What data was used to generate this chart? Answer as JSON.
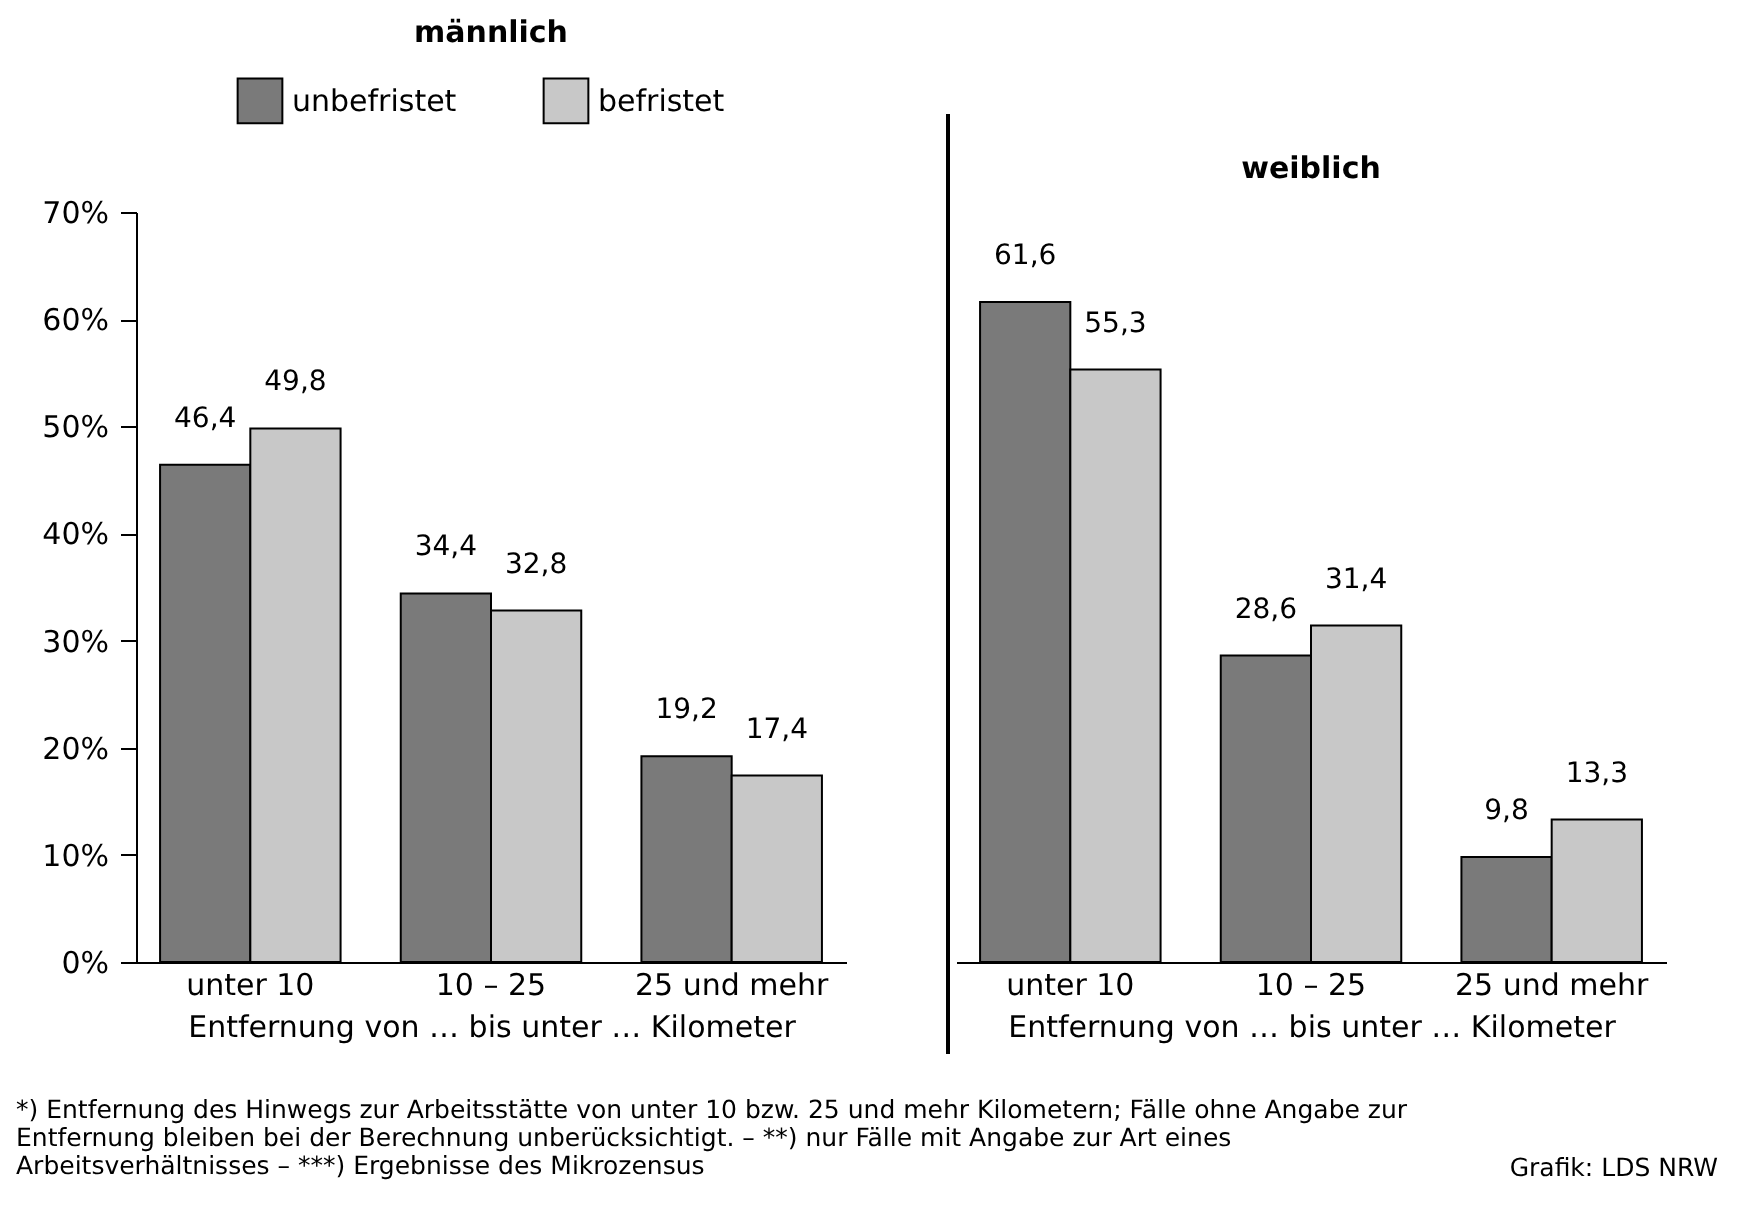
{
  "chart_data": [
    {
      "type": "bar",
      "title": "männlich",
      "xlabel": "Entfernung von … bis unter … Kilometer",
      "categories": [
        "unter 10",
        "10 – 25",
        "25 und mehr"
      ],
      "series": [
        {
          "name": "unbefristet",
          "color": "#7a7a7a",
          "values": [
            46.4,
            34.4,
            19.2
          ],
          "value_labels": [
            "46,4",
            "34,4",
            "19,2"
          ]
        },
        {
          "name": "befristet",
          "color": "#c8c8c8",
          "values": [
            49.8,
            32.8,
            17.4
          ],
          "value_labels": [
            "49,8",
            "32,8",
            "17,4"
          ]
        }
      ],
      "ylim": [
        0,
        70
      ],
      "yticks": [
        {
          "value": 0,
          "label": "0%"
        },
        {
          "value": 10,
          "label": "10%"
        },
        {
          "value": 20,
          "label": "20%"
        },
        {
          "value": 30,
          "label": "30%"
        },
        {
          "value": 40,
          "label": "40%"
        },
        {
          "value": 50,
          "label": "50%"
        },
        {
          "value": 60,
          "label": "60%"
        },
        {
          "value": 70,
          "label": "70%"
        }
      ],
      "grid": false,
      "legend": "top",
      "annotations": [
        "*) Entfernung des Hinwegs zur Arbeitsstätte von unter 10 bzw. 25 und mehr Kilometern; Fälle ohne Angabe zur Entfernung bleiben bei der Berechnung unberücksichtigt. – **) nur Fälle mit Angabe zur Art eines Arbeitsverhältnisses – ***) Ergebnisse des Mikrozensus",
        "Grafik: LDS NRW"
      ]
    },
    {
      "type": "bar",
      "title": "weiblich",
      "xlabel": "Entfernung von … bis unter … Kilometer",
      "categories": [
        "unter 10",
        "10 – 25",
        "25 und mehr"
      ],
      "series": [
        {
          "color": "#7a7a7a",
          "values": [
            61.6,
            28.6,
            9.8
          ],
          "value_labels": [
            "61,6",
            "28,6",
            "9,8"
          ]
        },
        {
          "color": "#c8c8c8",
          "values": [
            55.3,
            31.4,
            13.3
          ],
          "value_labels": [
            "55,3",
            "31,4",
            "13,3"
          ]
        }
      ],
      "ylim": [
        0,
        70
      ],
      "grid": false,
      "tick_labels": "x"
    }
  ]
}
